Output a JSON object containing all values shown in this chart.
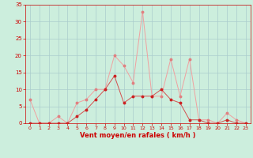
{
  "x": [
    0,
    1,
    2,
    3,
    4,
    5,
    6,
    7,
    8,
    9,
    10,
    11,
    12,
    13,
    14,
    15,
    16,
    17,
    18,
    19,
    20,
    21,
    22,
    23
  ],
  "y_moyen": [
    0,
    0,
    0,
    0,
    0,
    2,
    4,
    7,
    10,
    14,
    6,
    8,
    8,
    8,
    10,
    7,
    6,
    1,
    1,
    0,
    0,
    1,
    0,
    0
  ],
  "y_rafales": [
    7,
    0,
    0,
    2,
    0,
    6,
    7,
    10,
    10,
    20,
    17,
    12,
    33,
    8,
    8,
    19,
    8,
    19,
    1,
    1,
    0,
    3,
    1,
    0
  ],
  "line_color_moyen": "#d45050",
  "line_color_rafales": "#f0a0a0",
  "marker_color_moyen": "#cc2222",
  "marker_color_rafales": "#e08080",
  "bg_color": "#cceedd",
  "grid_color": "#aacccc",
  "xlabel": "Vent moyen/en rafales ( km/h )",
  "xlabel_color": "#cc0000",
  "tick_color": "#cc0000",
  "ylim": [
    0,
    35
  ],
  "xlim": [
    -0.5,
    23.5
  ],
  "yticks": [
    0,
    5,
    10,
    15,
    20,
    25,
    30,
    35
  ],
  "xticks": [
    0,
    1,
    2,
    3,
    4,
    5,
    6,
    7,
    8,
    9,
    10,
    11,
    12,
    13,
    14,
    15,
    16,
    17,
    18,
    19,
    20,
    21,
    22,
    23
  ]
}
